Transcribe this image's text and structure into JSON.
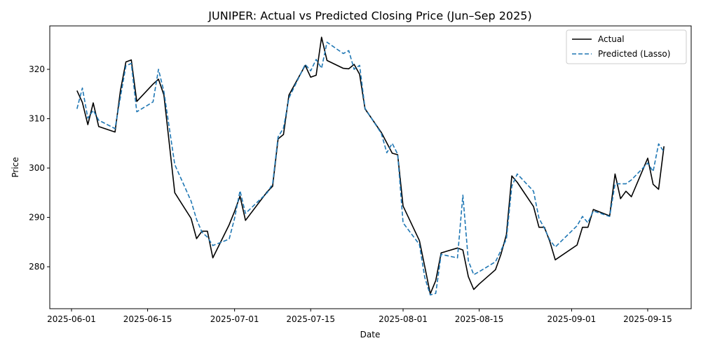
{
  "chart_data": {
    "type": "line",
    "title": "JUNIPER: Actual vs Predicted Closing Price (Jun–Sep 2025)",
    "xlabel": "Date",
    "ylabel": "Price",
    "xlim": [
      "2025-05-28",
      "2025-09-23"
    ],
    "ylim": [
      271.5,
      328.8
    ],
    "x_ticks": [
      "2025-06-01",
      "2025-06-15",
      "2025-07-01",
      "2025-07-15",
      "2025-08-01",
      "2025-08-15",
      "2025-09-01",
      "2025-09-15"
    ],
    "y_ticks": [
      280,
      290,
      300,
      310,
      320
    ],
    "grid": false,
    "legend_position": "top-right",
    "x": [
      "2025-06-02",
      "2025-06-03",
      "2025-06-04",
      "2025-06-05",
      "2025-06-06",
      "2025-06-09",
      "2025-06-10",
      "2025-06-11",
      "2025-06-12",
      "2025-06-13",
      "2025-06-16",
      "2025-06-17",
      "2025-06-18",
      "2025-06-20",
      "2025-06-23",
      "2025-06-24",
      "2025-06-25",
      "2025-06-26",
      "2025-06-27",
      "2025-06-30",
      "2025-07-01",
      "2025-07-02",
      "2025-07-03",
      "2025-07-07",
      "2025-07-08",
      "2025-07-09",
      "2025-07-10",
      "2025-07-11",
      "2025-07-14",
      "2025-07-15",
      "2025-07-16",
      "2025-07-17",
      "2025-07-18",
      "2025-07-21",
      "2025-07-22",
      "2025-07-23",
      "2025-07-24",
      "2025-07-25",
      "2025-07-28",
      "2025-07-29",
      "2025-07-30",
      "2025-07-31",
      "2025-08-01",
      "2025-08-04",
      "2025-08-05",
      "2025-08-06",
      "2025-08-07",
      "2025-08-08",
      "2025-08-11",
      "2025-08-12",
      "2025-08-13",
      "2025-08-14",
      "2025-08-15",
      "2025-08-18",
      "2025-08-19",
      "2025-08-20",
      "2025-08-21",
      "2025-08-22",
      "2025-08-25",
      "2025-08-26",
      "2025-08-27",
      "2025-08-28",
      "2025-08-29",
      "2025-09-02",
      "2025-09-03",
      "2025-09-04",
      "2025-09-05",
      "2025-09-08",
      "2025-09-09",
      "2025-09-10",
      "2025-09-11",
      "2025-09-12",
      "2025-09-15",
      "2025-09-16",
      "2025-09-17",
      "2025-09-18"
    ],
    "series": [
      {
        "name": "Actual",
        "color": "#000000",
        "style": "solid",
        "values": [
          315.7,
          313.3,
          308.8,
          313.2,
          308.4,
          307.3,
          315.7,
          321.5,
          321.9,
          313.5,
          317.0,
          318.0,
          314.8,
          295.0,
          289.8,
          285.7,
          287.2,
          287.2,
          281.8,
          288.5,
          291.2,
          294.3,
          289.4,
          295.2,
          296.3,
          305.9,
          306.8,
          314.8,
          320.8,
          318.4,
          318.8,
          326.5,
          321.8,
          320.2,
          320.1,
          321.0,
          319.0,
          312.0,
          307.2,
          305.1,
          303.0,
          302.7,
          292.3,
          285.3,
          280.0,
          274.5,
          277.2,
          282.8,
          283.8,
          283.4,
          278.0,
          275.4,
          276.5,
          279.4,
          282.5,
          286.5,
          298.4,
          297.1,
          292.2,
          288.0,
          288.0,
          285.1,
          281.4,
          284.4,
          288.0,
          288.0,
          291.6,
          290.3,
          298.8,
          293.8,
          295.3,
          294.2,
          302.0,
          296.7,
          295.7,
          304.4
        ]
      },
      {
        "name": "Predicted (Lasso)",
        "color": "#1f77b4",
        "style": "dashed",
        "values": [
          312.0,
          316.2,
          310.1,
          311.7,
          309.7,
          308.0,
          314.4,
          320.7,
          321.2,
          311.4,
          313.4,
          320.0,
          315.5,
          300.7,
          293.3,
          289.6,
          287.0,
          286.0,
          284.3,
          285.6,
          289.8,
          295.4,
          290.8,
          295.0,
          296.8,
          306.3,
          308.1,
          314.2,
          321.0,
          319.7,
          322.0,
          320.2,
          325.5,
          323.2,
          323.8,
          320.0,
          320.8,
          312.1,
          307.0,
          303.1,
          305.0,
          302.8,
          288.9,
          284.5,
          277.8,
          274.3,
          274.6,
          282.5,
          281.8,
          294.5,
          281.2,
          278.4,
          279.0,
          281.0,
          283.3,
          285.6,
          296.3,
          298.8,
          295.3,
          289.8,
          287.8,
          285.4,
          284.0,
          288.3,
          290.2,
          288.9,
          291.3,
          290.2,
          296.8,
          296.8,
          296.8,
          297.6,
          301.0,
          299.3,
          304.9,
          303.3
        ]
      }
    ]
  }
}
